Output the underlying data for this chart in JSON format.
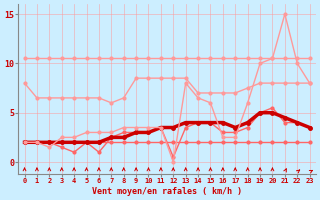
{
  "xlabel": "Vent moyen/en rafales ( km/h )",
  "background_color": "#cceeff",
  "grid_color": "#ff9999",
  "xlim": [
    -0.5,
    23.5
  ],
  "ylim": [
    -1.2,
    16
  ],
  "yticks": [
    0,
    5,
    10,
    15
  ],
  "xticks": [
    0,
    1,
    2,
    3,
    4,
    5,
    6,
    7,
    8,
    9,
    10,
    11,
    12,
    13,
    14,
    15,
    16,
    17,
    18,
    19,
    20,
    21,
    22,
    23
  ],
  "series": [
    {
      "name": "flat_top",
      "color": "#ff9999",
      "linewidth": 1.0,
      "marker": "o",
      "markersize": 2.0,
      "linestyle": "-",
      "y": [
        10.5,
        10.5,
        10.5,
        10.5,
        10.5,
        10.5,
        10.5,
        10.5,
        10.5,
        10.5,
        10.5,
        10.5,
        10.5,
        10.5,
        10.5,
        10.5,
        10.5,
        10.5,
        10.5,
        10.5,
        10.5,
        10.5,
        10.5,
        10.5
      ]
    },
    {
      "name": "second_line",
      "color": "#ff9999",
      "linewidth": 1.0,
      "marker": "o",
      "markersize": 2.0,
      "linestyle": "-",
      "y": [
        8.0,
        6.5,
        6.5,
        6.5,
        6.5,
        6.5,
        6.5,
        6.0,
        6.5,
        8.5,
        8.5,
        8.5,
        8.5,
        8.5,
        7.0,
        7.0,
        7.0,
        7.0,
        7.5,
        8.0,
        8.0,
        8.0,
        8.0,
        8.0
      ]
    },
    {
      "name": "flat_bottom",
      "color": "#ff6666",
      "linewidth": 1.0,
      "marker": "o",
      "markersize": 2.0,
      "linestyle": "-",
      "y": [
        2.0,
        2.0,
        2.0,
        2.0,
        2.0,
        2.0,
        2.0,
        2.0,
        2.0,
        2.0,
        2.0,
        2.0,
        2.0,
        2.0,
        2.0,
        2.0,
        2.0,
        2.0,
        2.0,
        2.0,
        2.0,
        2.0,
        2.0,
        2.0
      ]
    },
    {
      "name": "wavy_mid",
      "color": "#ff6666",
      "linewidth": 1.0,
      "marker": "o",
      "markersize": 2.0,
      "linestyle": "-",
      "y": [
        2.0,
        2.0,
        2.0,
        1.5,
        1.0,
        2.0,
        1.0,
        2.5,
        3.0,
        3.0,
        3.0,
        3.5,
        0.5,
        3.5,
        4.0,
        4.0,
        3.0,
        3.0,
        3.5,
        5.0,
        5.5,
        4.0,
        4.0,
        3.5
      ]
    },
    {
      "name": "bold_trend",
      "color": "#cc0000",
      "linewidth": 2.5,
      "marker": "o",
      "markersize": 2.5,
      "linestyle": "-",
      "y": [
        2.0,
        2.0,
        2.0,
        2.0,
        2.0,
        2.0,
        2.0,
        2.5,
        2.5,
        3.0,
        3.0,
        3.5,
        3.5,
        4.0,
        4.0,
        4.0,
        4.0,
        3.5,
        4.0,
        5.0,
        5.0,
        4.5,
        4.0,
        3.5
      ]
    },
    {
      "name": "spike_line",
      "color": "#ff9999",
      "linewidth": 1.0,
      "marker": "o",
      "markersize": 2.0,
      "linestyle": "-",
      "y": [
        2.0,
        2.0,
        1.5,
        2.5,
        2.5,
        3.0,
        3.0,
        3.0,
        3.5,
        3.5,
        3.5,
        3.5,
        0.0,
        8.0,
        6.5,
        6.0,
        2.5,
        2.5,
        6.0,
        10.0,
        10.5,
        15.0,
        10.0,
        8.0
      ]
    }
  ],
  "arrows": {
    "color": "#cc0000",
    "upright_count": 21,
    "diagonal_count": 3
  }
}
